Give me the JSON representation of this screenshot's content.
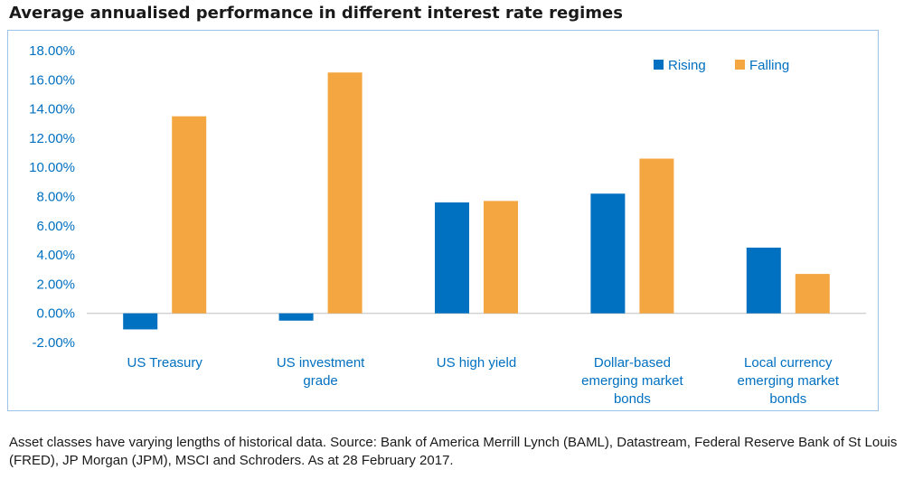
{
  "chart_data": {
    "type": "bar",
    "title": "Average annualised performance in different interest rate regimes",
    "categories": [
      "US Treasury",
      "US investment grade",
      "US high yield",
      "Dollar-based emerging market bonds",
      "Local currency emerging market bonds"
    ],
    "category_lines": [
      [
        "US Treasury"
      ],
      [
        "US investment",
        "grade"
      ],
      [
        "US high  yield"
      ],
      [
        "Dollar-based",
        "emerging  market",
        "bonds"
      ],
      [
        "Local currency",
        "emerging  market",
        "bonds"
      ]
    ],
    "series": [
      {
        "name": "Rising",
        "color": "#0070C0",
        "values": [
          -1.1,
          -0.5,
          7.6,
          8.2,
          4.5
        ]
      },
      {
        "name": "Falling",
        "color": "#F4A640",
        "values": [
          13.5,
          16.5,
          7.7,
          10.6,
          2.7
        ]
      }
    ],
    "ylim": [
      -2,
      18
    ],
    "yticks": [
      -2,
      0,
      2,
      4,
      6,
      8,
      10,
      12,
      14,
      16,
      18
    ],
    "ytick_format": "percent_2dp",
    "axis_text_color": "#0070C0",
    "grid": false,
    "legend_position": "top-right"
  },
  "footnote": "Asset classes have varying lengths of historical data. Source: Bank of America Merrill Lynch (BAML), Datastream, Federal Reserve Bank of St Louis (FRED), JP Morgan (JPM), MSCI and Schroders. As at 28 February 2017."
}
